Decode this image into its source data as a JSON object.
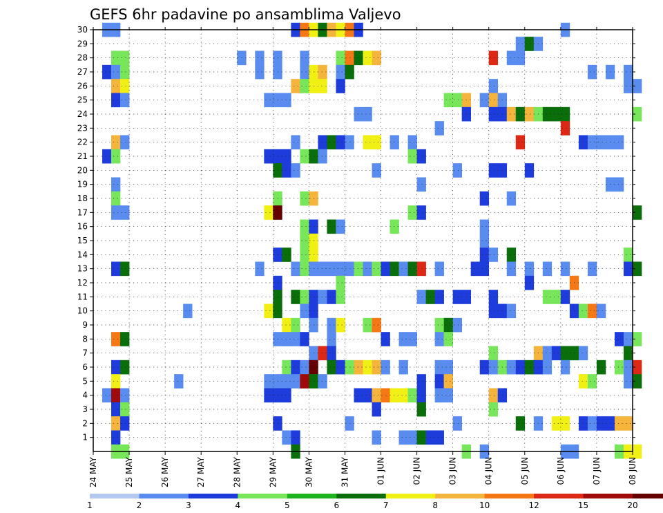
{
  "chart_data": {
    "type": "heatmap",
    "title": "GEFS 6hr padavine po ansamblima Valjevo",
    "x_ticks": [
      "24 MAY",
      "25 MAY",
      "26 MAY",
      "27 MAY",
      "28 MAY",
      "29 MAY",
      "30 MAY",
      "31 MAY",
      "01 JUN",
      "02 JUN",
      "03 JUN",
      "04 JUN",
      "05 JUN",
      "06 JUN",
      "07 JUN",
      "08 JUN"
    ],
    "steps_per_day": 4,
    "y_ticks": [
      1,
      2,
      3,
      4,
      5,
      6,
      7,
      8,
      9,
      10,
      11,
      12,
      13,
      14,
      15,
      16,
      17,
      18,
      19,
      20,
      21,
      22,
      23,
      24,
      25,
      26,
      27,
      28,
      29,
      30
    ],
    "ylim": [
      0,
      30
    ],
    "grid": true,
    "colorbar": {
      "labels": [
        "1",
        "2",
        "3",
        "4",
        "5",
        "6",
        "7",
        "8",
        "10",
        "12",
        "15",
        "20"
      ],
      "colors": [
        "#b4c8f0",
        "#5a8cf0",
        "#1e3cdc",
        "#78e65a",
        "#1eb41e",
        "#0a6e0a",
        "#f0f014",
        "#f5b43c",
        "#f57814",
        "#dc2814",
        "#a00a0a",
        "#640000"
      ]
    },
    "cells": [
      [
        1,
        30,
        1
      ],
      [
        2,
        30,
        1
      ],
      [
        22,
        30,
        2
      ],
      [
        23,
        30,
        8
      ],
      [
        24,
        30,
        6
      ],
      [
        25,
        30,
        5
      ],
      [
        26,
        30,
        7
      ],
      [
        27,
        30,
        6
      ],
      [
        28,
        30,
        8
      ],
      [
        29,
        30,
        2
      ],
      [
        52,
        30,
        1
      ],
      [
        47,
        29,
        1
      ],
      [
        48,
        29,
        5
      ],
      [
        49,
        29,
        1
      ],
      [
        2,
        28,
        3
      ],
      [
        3,
        28,
        3
      ],
      [
        16,
        28,
        1
      ],
      [
        18,
        28,
        1
      ],
      [
        20,
        28,
        1
      ],
      [
        23,
        28,
        1
      ],
      [
        27,
        28,
        3
      ],
      [
        28,
        28,
        8
      ],
      [
        29,
        28,
        5
      ],
      [
        30,
        28,
        6
      ],
      [
        31,
        28,
        7
      ],
      [
        44,
        28,
        9
      ],
      [
        46,
        28,
        1
      ],
      [
        47,
        28,
        1
      ],
      [
        1,
        27,
        2
      ],
      [
        2,
        27,
        1
      ],
      [
        3,
        27,
        3
      ],
      [
        18,
        27,
        1
      ],
      [
        20,
        27,
        1
      ],
      [
        23,
        27,
        1
      ],
      [
        24,
        27,
        6
      ],
      [
        25,
        27,
        7
      ],
      [
        27,
        27,
        1
      ],
      [
        28,
        27,
        5
      ],
      [
        55,
        27,
        1
      ],
      [
        57,
        27,
        1
      ],
      [
        59,
        27,
        1
      ],
      [
        2,
        26,
        7
      ],
      [
        3,
        26,
        6
      ],
      [
        22,
        26,
        7
      ],
      [
        23,
        26,
        3
      ],
      [
        24,
        26,
        6
      ],
      [
        25,
        26,
        6
      ],
      [
        27,
        26,
        2
      ],
      [
        44,
        26,
        1
      ],
      [
        59,
        26,
        1
      ],
      [
        60,
        26,
        1
      ],
      [
        2,
        25,
        2
      ],
      [
        3,
        25,
        1
      ],
      [
        19,
        25,
        1
      ],
      [
        20,
        25,
        1
      ],
      [
        21,
        25,
        1
      ],
      [
        39,
        25,
        3
      ],
      [
        40,
        25,
        3
      ],
      [
        41,
        25,
        7
      ],
      [
        43,
        25,
        1
      ],
      [
        44,
        25,
        7
      ],
      [
        45,
        25,
        1
      ],
      [
        29,
        24,
        1
      ],
      [
        30,
        24,
        1
      ],
      [
        41,
        24,
        2
      ],
      [
        44,
        24,
        2
      ],
      [
        45,
        24,
        2
      ],
      [
        46,
        24,
        7
      ],
      [
        47,
        24,
        5
      ],
      [
        48,
        24,
        7
      ],
      [
        49,
        24,
        3
      ],
      [
        50,
        24,
        5
      ],
      [
        51,
        24,
        5
      ],
      [
        52,
        24,
        5
      ],
      [
        60,
        24,
        3
      ],
      [
        38,
        23,
        1
      ],
      [
        52,
        23,
        9
      ],
      [
        2,
        22,
        7
      ],
      [
        3,
        22,
        1
      ],
      [
        22,
        22,
        1
      ],
      [
        25,
        22,
        2
      ],
      [
        26,
        22,
        5
      ],
      [
        27,
        22,
        2
      ],
      [
        28,
        22,
        1
      ],
      [
        30,
        22,
        6
      ],
      [
        31,
        22,
        6
      ],
      [
        33,
        22,
        1
      ],
      [
        35,
        22,
        1
      ],
      [
        47,
        22,
        9
      ],
      [
        54,
        22,
        2
      ],
      [
        55,
        22,
        1
      ],
      [
        56,
        22,
        1
      ],
      [
        57,
        22,
        1
      ],
      [
        58,
        22,
        1
      ],
      [
        1,
        21,
        2
      ],
      [
        2,
        21,
        3
      ],
      [
        19,
        21,
        2
      ],
      [
        20,
        21,
        2
      ],
      [
        21,
        21,
        2
      ],
      [
        23,
        21,
        3
      ],
      [
        24,
        21,
        5
      ],
      [
        25,
        21,
        1
      ],
      [
        35,
        21,
        3
      ],
      [
        36,
        21,
        2
      ],
      [
        20,
        20,
        5
      ],
      [
        21,
        20,
        2
      ],
      [
        22,
        20,
        1
      ],
      [
        31,
        20,
        1
      ],
      [
        40,
        20,
        1
      ],
      [
        44,
        20,
        2
      ],
      [
        45,
        20,
        2
      ],
      [
        48,
        20,
        2
      ],
      [
        2,
        19,
        1
      ],
      [
        36,
        19,
        1
      ],
      [
        57,
        19,
        1
      ],
      [
        58,
        19,
        1
      ],
      [
        2,
        18,
        3
      ],
      [
        20,
        18,
        3
      ],
      [
        23,
        18,
        3
      ],
      [
        24,
        18,
        7
      ],
      [
        43,
        18,
        2
      ],
      [
        46,
        18,
        1
      ],
      [
        2,
        17,
        1
      ],
      [
        3,
        17,
        1
      ],
      [
        19,
        17,
        6
      ],
      [
        20,
        17,
        11
      ],
      [
        35,
        17,
        3
      ],
      [
        36,
        17,
        2
      ],
      [
        60,
        17,
        5
      ],
      [
        23,
        16,
        3
      ],
      [
        24,
        16,
        2
      ],
      [
        26,
        16,
        5
      ],
      [
        27,
        16,
        1
      ],
      [
        33,
        16,
        3
      ],
      [
        43,
        16,
        1
      ],
      [
        23,
        15,
        3
      ],
      [
        24,
        15,
        6
      ],
      [
        43,
        15,
        1
      ],
      [
        20,
        14,
        2
      ],
      [
        21,
        14,
        5
      ],
      [
        23,
        14,
        3
      ],
      [
        24,
        14,
        6
      ],
      [
        43,
        14,
        2
      ],
      [
        44,
        14,
        1
      ],
      [
        46,
        14,
        5
      ],
      [
        59,
        14,
        3
      ],
      [
        2,
        13,
        2
      ],
      [
        3,
        13,
        5
      ],
      [
        18,
        13,
        1
      ],
      [
        22,
        13,
        1
      ],
      [
        23,
        13,
        3
      ],
      [
        24,
        13,
        1
      ],
      [
        25,
        13,
        1
      ],
      [
        26,
        13,
        1
      ],
      [
        27,
        13,
        1
      ],
      [
        28,
        13,
        1
      ],
      [
        29,
        13,
        3
      ],
      [
        30,
        13,
        1
      ],
      [
        31,
        13,
        3
      ],
      [
        32,
        13,
        2
      ],
      [
        33,
        13,
        5
      ],
      [
        34,
        13,
        1
      ],
      [
        35,
        13,
        5
      ],
      [
        36,
        13,
        9
      ],
      [
        38,
        13,
        1
      ],
      [
        42,
        13,
        2
      ],
      [
        43,
        13,
        2
      ],
      [
        46,
        13,
        1
      ],
      [
        48,
        13,
        1
      ],
      [
        50,
        13,
        1
      ],
      [
        52,
        13,
        1
      ],
      [
        55,
        13,
        1
      ],
      [
        59,
        13,
        2
      ],
      [
        60,
        13,
        5
      ],
      [
        20,
        12,
        2
      ],
      [
        27,
        12,
        3
      ],
      [
        48,
        12,
        2
      ],
      [
        53,
        12,
        8
      ],
      [
        20,
        11,
        5
      ],
      [
        22,
        11,
        5
      ],
      [
        23,
        11,
        3
      ],
      [
        24,
        11,
        2
      ],
      [
        25,
        11,
        1
      ],
      [
        26,
        11,
        2
      ],
      [
        27,
        11,
        3
      ],
      [
        36,
        11,
        1
      ],
      [
        37,
        11,
        5
      ],
      [
        38,
        11,
        2
      ],
      [
        40,
        11,
        2
      ],
      [
        41,
        11,
        2
      ],
      [
        44,
        11,
        2
      ],
      [
        50,
        11,
        3
      ],
      [
        51,
        11,
        3
      ],
      [
        52,
        11,
        2
      ],
      [
        10,
        10,
        1
      ],
      [
        19,
        10,
        6
      ],
      [
        20,
        10,
        5
      ],
      [
        23,
        10,
        1
      ],
      [
        24,
        10,
        2
      ],
      [
        44,
        10,
        2
      ],
      [
        45,
        10,
        2
      ],
      [
        46,
        10,
        1
      ],
      [
        53,
        10,
        2
      ],
      [
        54,
        10,
        3
      ],
      [
        55,
        10,
        8
      ],
      [
        56,
        10,
        1
      ],
      [
        21,
        9,
        6
      ],
      [
        22,
        9,
        3
      ],
      [
        24,
        9,
        1
      ],
      [
        26,
        9,
        1
      ],
      [
        27,
        9,
        6
      ],
      [
        30,
        9,
        3
      ],
      [
        31,
        9,
        8
      ],
      [
        38,
        9,
        3
      ],
      [
        39,
        9,
        5
      ],
      [
        40,
        9,
        1
      ],
      [
        2,
        8,
        8
      ],
      [
        3,
        8,
        5
      ],
      [
        20,
        8,
        1
      ],
      [
        21,
        8,
        1
      ],
      [
        22,
        8,
        1
      ],
      [
        23,
        8,
        2
      ],
      [
        26,
        8,
        1
      ],
      [
        32,
        8,
        2
      ],
      [
        34,
        8,
        1
      ],
      [
        35,
        8,
        1
      ],
      [
        38,
        8,
        1
      ],
      [
        39,
        8,
        3
      ],
      [
        58,
        8,
        2
      ],
      [
        59,
        8,
        1
      ],
      [
        60,
        8,
        3
      ],
      [
        24,
        7,
        1
      ],
      [
        25,
        7,
        9
      ],
      [
        26,
        7,
        2
      ],
      [
        44,
        7,
        3
      ],
      [
        49,
        7,
        7
      ],
      [
        50,
        7,
        1
      ],
      [
        51,
        7,
        2
      ],
      [
        52,
        7,
        5
      ],
      [
        53,
        7,
        5
      ],
      [
        54,
        7,
        1
      ],
      [
        59,
        7,
        5
      ],
      [
        2,
        6,
        2
      ],
      [
        3,
        6,
        5
      ],
      [
        21,
        6,
        3
      ],
      [
        22,
        6,
        2
      ],
      [
        23,
        6,
        1
      ],
      [
        24,
        6,
        11
      ],
      [
        26,
        6,
        5
      ],
      [
        27,
        6,
        2
      ],
      [
        28,
        6,
        3
      ],
      [
        29,
        6,
        7
      ],
      [
        30,
        6,
        6
      ],
      [
        31,
        6,
        7
      ],
      [
        32,
        6,
        1
      ],
      [
        34,
        6,
        1
      ],
      [
        38,
        6,
        1
      ],
      [
        39,
        6,
        1
      ],
      [
        43,
        6,
        2
      ],
      [
        44,
        6,
        1
      ],
      [
        45,
        6,
        3
      ],
      [
        46,
        6,
        1
      ],
      [
        47,
        6,
        2
      ],
      [
        48,
        6,
        5
      ],
      [
        49,
        6,
        2
      ],
      [
        50,
        6,
        1
      ],
      [
        52,
        6,
        1
      ],
      [
        56,
        6,
        5
      ],
      [
        58,
        6,
        3
      ],
      [
        59,
        6,
        1
      ],
      [
        60,
        6,
        9
      ],
      [
        2,
        5,
        6
      ],
      [
        9,
        5,
        1
      ],
      [
        19,
        5,
        1
      ],
      [
        20,
        5,
        1
      ],
      [
        21,
        5,
        1
      ],
      [
        22,
        5,
        1
      ],
      [
        23,
        5,
        10
      ],
      [
        24,
        5,
        5
      ],
      [
        25,
        5,
        1
      ],
      [
        36,
        5,
        2
      ],
      [
        38,
        5,
        2
      ],
      [
        39,
        5,
        7
      ],
      [
        54,
        5,
        6
      ],
      [
        55,
        5,
        3
      ],
      [
        59,
        5,
        1
      ],
      [
        60,
        5,
        5
      ],
      [
        1,
        4,
        1
      ],
      [
        2,
        4,
        10
      ],
      [
        3,
        4,
        1
      ],
      [
        19,
        4,
        2
      ],
      [
        20,
        4,
        2
      ],
      [
        21,
        4,
        2
      ],
      [
        29,
        4,
        2
      ],
      [
        30,
        4,
        2
      ],
      [
        31,
        4,
        7
      ],
      [
        32,
        4,
        8
      ],
      [
        33,
        4,
        6
      ],
      [
        34,
        4,
        6
      ],
      [
        35,
        4,
        3
      ],
      [
        36,
        4,
        2
      ],
      [
        38,
        4,
        1
      ],
      [
        39,
        4,
        1
      ],
      [
        44,
        4,
        7
      ],
      [
        45,
        4,
        2
      ],
      [
        2,
        3,
        2
      ],
      [
        3,
        3,
        3
      ],
      [
        31,
        3,
        2
      ],
      [
        36,
        3,
        5
      ],
      [
        44,
        3,
        3
      ],
      [
        2,
        2,
        7
      ],
      [
        3,
        2,
        2
      ],
      [
        20,
        2,
        2
      ],
      [
        28,
        2,
        1
      ],
      [
        40,
        2,
        1
      ],
      [
        47,
        2,
        5
      ],
      [
        49,
        2,
        1
      ],
      [
        51,
        2,
        6
      ],
      [
        52,
        2,
        6
      ],
      [
        54,
        2,
        2
      ],
      [
        55,
        2,
        1
      ],
      [
        56,
        2,
        2
      ],
      [
        57,
        2,
        2
      ],
      [
        58,
        2,
        7
      ],
      [
        59,
        2,
        7
      ],
      [
        2,
        1,
        2
      ],
      [
        21,
        1,
        1
      ],
      [
        22,
        1,
        2
      ],
      [
        31,
        1,
        1
      ],
      [
        34,
        1,
        1
      ],
      [
        35,
        1,
        1
      ],
      [
        36,
        1,
        5
      ],
      [
        37,
        1,
        2
      ],
      [
        38,
        1,
        2
      ],
      [
        2,
        0,
        3
      ],
      [
        3,
        0,
        3
      ],
      [
        22,
        0,
        5
      ],
      [
        41,
        0,
        3
      ],
      [
        43,
        0,
        1
      ],
      [
        52,
        0,
        1
      ],
      [
        53,
        0,
        1
      ],
      [
        58,
        0,
        3
      ],
      [
        59,
        0,
        6
      ],
      [
        60,
        0,
        6
      ]
    ]
  }
}
